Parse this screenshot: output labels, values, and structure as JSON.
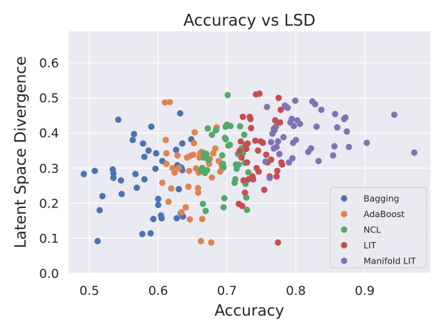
{
  "chart_data": {
    "type": "scatter",
    "title": "Accuracy vs LSD",
    "xlabel": "Accuracy",
    "ylabel": "Latent Space Divergence",
    "xlim": [
      0.47,
      0.995
    ],
    "ylim": [
      0.0,
      0.69
    ],
    "xticks": [
      "0.5",
      "0.6",
      "0.7",
      "0.8",
      "0.9"
    ],
    "xtick_values": [
      0.5,
      0.6,
      0.7,
      0.8,
      0.9
    ],
    "yticks": [
      "0.0",
      "0.1",
      "0.2",
      "0.3",
      "0.4",
      "0.5",
      "0.6"
    ],
    "ytick_values": [
      0.0,
      0.1,
      0.2,
      0.3,
      0.4,
      0.5,
      0.6
    ],
    "grid": true,
    "background": "#eaeaf2",
    "legend_position": "lower-right",
    "series": [
      {
        "name": "Bagging",
        "color": "#4c72b0",
        "points": [
          [
            0.492,
            0.283
          ],
          [
            0.508,
            0.292
          ],
          [
            0.512,
            0.092
          ],
          [
            0.515,
            0.18
          ],
          [
            0.519,
            0.22
          ],
          [
            0.534,
            0.296
          ],
          [
            0.535,
            0.285
          ],
          [
            0.535,
            0.272
          ],
          [
            0.542,
            0.438
          ],
          [
            0.546,
            0.265
          ],
          [
            0.547,
            0.226
          ],
          [
            0.563,
            0.38
          ],
          [
            0.565,
            0.397
          ],
          [
            0.567,
            0.283
          ],
          [
            0.569,
            0.244
          ],
          [
            0.577,
            0.112
          ],
          [
            0.578,
            0.37
          ],
          [
            0.58,
            0.268
          ],
          [
            0.58,
            0.332
          ],
          [
            0.586,
            0.35
          ],
          [
            0.589,
            0.114
          ],
          [
            0.59,
            0.418
          ],
          [
            0.593,
            0.155
          ],
          [
            0.596,
            0.298
          ],
          [
            0.597,
            0.342
          ],
          [
            0.6,
            0.212
          ],
          [
            0.6,
            0.195
          ],
          [
            0.604,
            0.165
          ],
          [
            0.605,
            0.157
          ],
          [
            0.606,
            0.32
          ],
          [
            0.626,
            0.352
          ],
          [
            0.627,
            0.157
          ],
          [
            0.628,
            0.308
          ],
          [
            0.63,
            0.24
          ],
          [
            0.632,
            0.456
          ],
          [
            0.633,
            0.172
          ],
          [
            0.633,
            0.302
          ],
          [
            0.634,
            0.3
          ],
          [
            0.635,
            0.294
          ],
          [
            0.635,
            0.37
          ],
          [
            0.636,
            0.162
          ],
          [
            0.648,
            0.382
          ]
        ]
      },
      {
        "name": "AdaBoost",
        "color": "#dd8452",
        "points": [
          [
            0.606,
            0.258
          ],
          [
            0.61,
            0.487
          ],
          [
            0.611,
            0.38
          ],
          [
            0.612,
            0.312
          ],
          [
            0.612,
            0.342
          ],
          [
            0.615,
            0.204
          ],
          [
            0.617,
            0.488
          ],
          [
            0.619,
            0.242
          ],
          [
            0.621,
            0.3
          ],
          [
            0.624,
            0.287
          ],
          [
            0.628,
            0.336
          ],
          [
            0.63,
            0.3
          ],
          [
            0.634,
            0.174
          ],
          [
            0.64,
            0.188
          ],
          [
            0.642,
            0.33
          ],
          [
            0.644,
            0.247
          ],
          [
            0.645,
            0.292
          ],
          [
            0.646,
            0.154
          ],
          [
            0.647,
            0.335
          ],
          [
            0.651,
            0.338
          ],
          [
            0.652,
            0.371
          ],
          [
            0.653,
            0.402
          ],
          [
            0.655,
            0.299
          ],
          [
            0.658,
            0.243
          ],
          [
            0.658,
            0.23
          ],
          [
            0.659,
            0.287
          ],
          [
            0.66,
            0.33
          ],
          [
            0.661,
            0.342
          ],
          [
            0.662,
            0.092
          ],
          [
            0.663,
            0.346
          ],
          [
            0.664,
            0.155
          ],
          [
            0.674,
            0.312
          ],
          [
            0.675,
            0.326
          ],
          [
            0.677,
            0.088
          ],
          [
            0.678,
            0.273
          ],
          [
            0.68,
            0.342
          ],
          [
            0.683,
            0.356
          ],
          [
            0.685,
            0.416
          ],
          [
            0.688,
            0.32
          ],
          [
            0.69,
            0.29
          ],
          [
            0.692,
            0.31
          ],
          [
            0.693,
            0.3
          ]
        ]
      },
      {
        "name": "NCL",
        "color": "#55a868",
        "points": [
          [
            0.662,
            0.292
          ],
          [
            0.664,
            0.3
          ],
          [
            0.665,
            0.198
          ],
          [
            0.666,
            0.33
          ],
          [
            0.667,
            0.342
          ],
          [
            0.668,
            0.286
          ],
          [
            0.669,
            0.178
          ],
          [
            0.67,
            0.34
          ],
          [
            0.671,
            0.294
          ],
          [
            0.672,
            0.413
          ],
          [
            0.673,
            0.323
          ],
          [
            0.678,
            0.395
          ],
          [
            0.684,
            0.408
          ],
          [
            0.693,
            0.336
          ],
          [
            0.694,
            0.312
          ],
          [
            0.695,
            0.188
          ],
          [
            0.695,
            0.302
          ],
          [
            0.696,
            0.214
          ],
          [
            0.697,
            0.386
          ],
          [
            0.698,
            0.418
          ],
          [
            0.698,
            0.382
          ],
          [
            0.7,
            0.424
          ],
          [
            0.701,
            0.508
          ],
          [
            0.702,
            0.364
          ],
          [
            0.704,
            0.366
          ],
          [
            0.705,
            0.42
          ],
          [
            0.711,
            0.258
          ],
          [
            0.712,
            0.268
          ],
          [
            0.713,
            0.31
          ],
          [
            0.714,
            0.298
          ],
          [
            0.716,
            0.34
          ],
          [
            0.717,
            0.31
          ],
          [
            0.719,
            0.419
          ],
          [
            0.72,
            0.35
          ],
          [
            0.721,
            0.356
          ],
          [
            0.723,
            0.342
          ],
          [
            0.725,
            0.395
          ],
          [
            0.726,
            0.315
          ],
          [
            0.727,
            0.255
          ],
          [
            0.728,
            0.216
          ],
          [
            0.729,
            0.181
          ],
          [
            0.731,
            0.288
          ]
        ]
      },
      {
        "name": "LIT",
        "color": "#c44e52",
        "points": [
          [
            0.717,
            0.198
          ],
          [
            0.718,
            0.348
          ],
          [
            0.72,
            0.376
          ],
          [
            0.721,
            0.33
          ],
          [
            0.722,
            0.192
          ],
          [
            0.723,
            0.446
          ],
          [
            0.724,
            0.265
          ],
          [
            0.726,
            0.23
          ],
          [
            0.727,
            0.366
          ],
          [
            0.728,
            0.355
          ],
          [
            0.729,
            0.316
          ],
          [
            0.73,
            0.37
          ],
          [
            0.731,
            0.268
          ],
          [
            0.733,
            0.446
          ],
          [
            0.734,
            0.44
          ],
          [
            0.735,
            0.414
          ],
          [
            0.737,
            0.276
          ],
          [
            0.738,
            0.268
          ],
          [
            0.741,
            0.378
          ],
          [
            0.742,
            0.51
          ],
          [
            0.743,
            0.3
          ],
          [
            0.745,
            0.35
          ],
          [
            0.746,
            0.29
          ],
          [
            0.747,
            0.512
          ],
          [
            0.749,
            0.376
          ],
          [
            0.752,
            0.372
          ],
          [
            0.754,
            0.238
          ],
          [
            0.757,
            0.338
          ],
          [
            0.759,
            0.316
          ],
          [
            0.762,
            0.276
          ],
          [
            0.764,
            0.324
          ],
          [
            0.768,
            0.412
          ],
          [
            0.77,
            0.436
          ],
          [
            0.772,
            0.276
          ],
          [
            0.773,
            0.292
          ],
          [
            0.774,
            0.088
          ],
          [
            0.775,
            0.5
          ],
          [
            0.777,
            0.43
          ],
          [
            0.778,
            0.466
          ],
          [
            0.779,
            0.316
          ],
          [
            0.78,
            0.31
          ],
          [
            0.786,
            0.475
          ]
        ]
      },
      {
        "name": "Manifold LIT",
        "color": "#8172b3",
        "points": [
          [
            0.756,
            0.318
          ],
          [
            0.758,
            0.474
          ],
          [
            0.762,
            0.272
          ],
          [
            0.764,
            0.374
          ],
          [
            0.766,
            0.398
          ],
          [
            0.768,
            0.356
          ],
          [
            0.769,
            0.408
          ],
          [
            0.771,
            0.418
          ],
          [
            0.772,
            0.36
          ],
          [
            0.774,
            0.376
          ],
          [
            0.776,
            0.34
          ],
          [
            0.782,
            0.388
          ],
          [
            0.784,
            0.478
          ],
          [
            0.786,
            0.474
          ],
          [
            0.788,
            0.472
          ],
          [
            0.79,
            0.316
          ],
          [
            0.792,
            0.43
          ],
          [
            0.794,
            0.44
          ],
          [
            0.795,
            0.328
          ],
          [
            0.796,
            0.372
          ],
          [
            0.797,
            0.42
          ],
          [
            0.799,
            0.492
          ],
          [
            0.8,
            0.38
          ],
          [
            0.802,
            0.436
          ],
          [
            0.806,
            0.426
          ],
          [
            0.818,
            0.346
          ],
          [
            0.822,
            0.356
          ],
          [
            0.824,
            0.49
          ],
          [
            0.828,
            0.482
          ],
          [
            0.83,
            0.418
          ],
          [
            0.833,
            0.32
          ],
          [
            0.837,
            0.466
          ],
          [
            0.854,
            0.336
          ],
          [
            0.856,
            0.362
          ],
          [
            0.857,
            0.454
          ],
          [
            0.86,
            0.416
          ],
          [
            0.87,
            0.44
          ],
          [
            0.872,
            0.444
          ],
          [
            0.874,
            0.404
          ],
          [
            0.877,
            0.36
          ],
          [
            0.903,
            0.372
          ],
          [
            0.943,
            0.452
          ],
          [
            0.972,
            0.344
          ]
        ]
      }
    ]
  }
}
